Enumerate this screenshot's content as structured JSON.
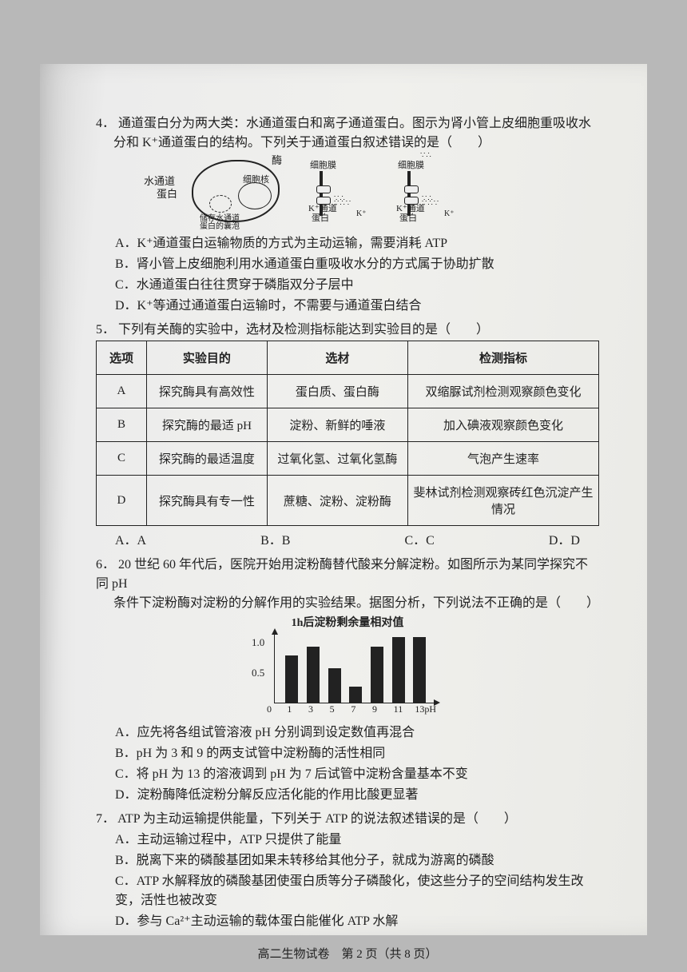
{
  "q4": {
    "num": "4．",
    "stem1": "通道蛋白分为两大类：水通道蛋白和离子通道蛋白。图示为肾小管上皮细胞重吸收水",
    "stem2": "分和 K⁺通道蛋白的结构。下列关于通道蛋白叙述错误的是（　　）",
    "diagram": {
      "label_enzyme": "酶",
      "label_water_channel": "水通道",
      "label_protein": "蛋白",
      "label_nucleus": "细胞核",
      "label_vesicle1": "储存水通道",
      "label_vesicle2": "蛋白的囊泡",
      "label_membrane": "细胞膜",
      "label_k_channel": "K⁺通道",
      "label_k_protein": "蛋白",
      "label_k": "K⁺"
    },
    "A": "A．K⁺通道蛋白运输物质的方式为主动运输，需要消耗 ATP",
    "B": "B．肾小管上皮细胞利用水通道蛋白重吸收水分的方式属于协助扩散",
    "C": "C．水通道蛋白往往贯穿于磷脂双分子层中",
    "D": "D．K⁺等通过通道蛋白运输时，不需要与通道蛋白结合"
  },
  "q5": {
    "num": "5．",
    "stem": "下列有关酶的实验中，选材及检测指标能达到实验目的是（　　）",
    "headers": [
      "选项",
      "实验目的",
      "选材",
      "检测指标"
    ],
    "rows": [
      [
        "A",
        "探究酶具有高效性",
        "蛋白质、蛋白酶",
        "双缩脲试剂检测观察颜色变化"
      ],
      [
        "B",
        "探究酶的最适 pH",
        "淀粉、新鲜的唾液",
        "加入碘液观察颜色变化"
      ],
      [
        "C",
        "探究酶的最适温度",
        "过氧化氢、过氧化氢酶",
        "气泡产生速率"
      ],
      [
        "D",
        "探究酶具有专一性",
        "蔗糖、淀粉、淀粉酶",
        "斐林试剂检测观察砖红色沉淀产生情况"
      ]
    ],
    "choices": [
      "A．A",
      "B．B",
      "C．C",
      "D．D"
    ]
  },
  "q6": {
    "num": "6．",
    "stem1": "20 世纪 60 年代后，医院开始用淀粉酶替代酸来分解淀粉。如图所示为某同学探究不同 pH",
    "stem2": "条件下淀粉酶对淀粉的分解作用的实验结果。据图分析，下列说法不正确的是（　　）",
    "chart": {
      "title": "1h后淀粉剩余量相对值",
      "y_ticks": [
        "1.0",
        "0.5"
      ],
      "x_ticks": [
        "0",
        "1",
        "3",
        "5",
        "7",
        "9",
        "11",
        "13pH"
      ],
      "bars": [
        {
          "x": 1,
          "h": 0.75
        },
        {
          "x": 3,
          "h": 0.9
        },
        {
          "x": 5,
          "h": 0.55
        },
        {
          "x": 7,
          "h": 0.25
        },
        {
          "x": 9,
          "h": 0.9
        },
        {
          "x": 11,
          "h": 1.05
        },
        {
          "x": 13,
          "h": 1.05
        }
      ],
      "bar_color": "#222222",
      "ymax": 1.1
    },
    "A": "A．应先将各组试管溶液 pH 分别调到设定数值再混合",
    "B": "B．pH 为 3 和 9 的两支试管中淀粉酶的活性相同",
    "C": "C．将 pH 为 13 的溶液调到 pH 为 7 后试管中淀粉含量基本不变",
    "D": "D．淀粉酶降低淀粉分解反应活化能的作用比酸更显著"
  },
  "q7": {
    "num": "7．",
    "stem": "ATP 为主动运输提供能量，下列关于 ATP 的说法叙述错误的是（　　）",
    "A": "A．主动运输过程中，ATP 只提供了能量",
    "B": "B．脱离下来的磷酸基团如果未转移给其他分子，就成为游离的磷酸",
    "C": "C．ATP 水解释放的磷酸基团使蛋白质等分子磷酸化，使这些分子的空间结构发生改变，活性也被改变",
    "D": "D．参与 Ca²⁺主动运输的载体蛋白能催化 ATP 水解"
  },
  "footer": "高二生物试卷　第 2 页（共 8 页）"
}
